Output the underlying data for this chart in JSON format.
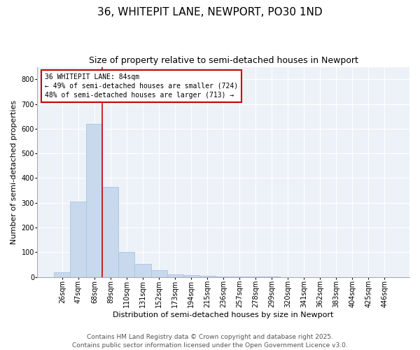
{
  "title": "36, WHITEPIT LANE, NEWPORT, PO30 1ND",
  "subtitle": "Size of property relative to semi-detached houses in Newport",
  "xlabel": "Distribution of semi-detached houses by size in Newport",
  "ylabel": "Number of semi-detached properties",
  "categories": [
    "26sqm",
    "47sqm",
    "68sqm",
    "89sqm",
    "110sqm",
    "131sqm",
    "152sqm",
    "173sqm",
    "194sqm",
    "215sqm",
    "236sqm",
    "257sqm",
    "278sqm",
    "299sqm",
    "320sqm",
    "341sqm",
    "362sqm",
    "383sqm",
    "404sqm",
    "425sqm",
    "446sqm"
  ],
  "values": [
    20,
    305,
    620,
    365,
    100,
    52,
    27,
    12,
    8,
    4,
    2,
    1,
    1,
    1,
    0,
    0,
    0,
    0,
    0,
    0,
    0
  ],
  "bar_color": "#c8d9ed",
  "bar_edge_color": "#a8c4e0",
  "red_line_index": 3,
  "annotation_title": "36 WHITEPIT LANE: 84sqm",
  "annotation_line1": "← 49% of semi-detached houses are smaller (724)",
  "annotation_line2": "48% of semi-detached houses are larger (713) →",
  "annotation_box_color": "#ffffff",
  "annotation_box_edge_color": "#cc0000",
  "red_line_color": "#cc0000",
  "ylim": [
    0,
    850
  ],
  "yticks": [
    0,
    100,
    200,
    300,
    400,
    500,
    600,
    700,
    800
  ],
  "background_color": "#edf2f8",
  "footer_line1": "Contains HM Land Registry data © Crown copyright and database right 2025.",
  "footer_line2": "Contains public sector information licensed under the Open Government Licence v3.0.",
  "title_fontsize": 11,
  "subtitle_fontsize": 9,
  "axis_label_fontsize": 8,
  "tick_fontsize": 7,
  "footer_fontsize": 6.5,
  "annotation_fontsize": 7
}
